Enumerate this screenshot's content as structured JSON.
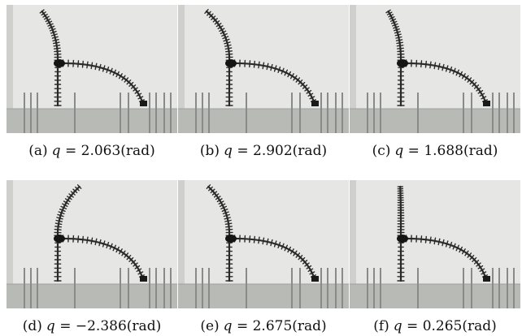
{
  "panels": [
    {
      "label": "(a)",
      "variable": "q",
      "equals": "=",
      "value": "2.063",
      "unit": "(rad)",
      "upper_angle": 2.063
    },
    {
      "label": "(b)",
      "variable": "q",
      "equals": "=",
      "value": "2.902",
      "unit": "(rad)",
      "upper_angle": 2.902
    },
    {
      "label": "(c)",
      "variable": "q",
      "equals": "=",
      "value": "1.688",
      "unit": "(rad)",
      "upper_angle": 1.688
    },
    {
      "label": "(d)",
      "variable": "q",
      "equals": "=",
      "value": "−2.386",
      "unit": "(rad)",
      "upper_angle": -2.386
    },
    {
      "label": "(e)",
      "variable": "q",
      "equals": "=",
      "value": "2.675",
      "unit": "(rad)",
      "upper_angle": 2.675
    },
    {
      "label": "(f)",
      "variable": "q",
      "equals": "=",
      "value": "0.265",
      "unit": "(rad)",
      "upper_angle": 0.265
    }
  ],
  "colors": {
    "wall": "#e6e6e4",
    "wall_shadow": "#cfcfcd",
    "floor": "#b8bab6",
    "robot": "#2a2a2a",
    "rod": "#8a8a88"
  }
}
